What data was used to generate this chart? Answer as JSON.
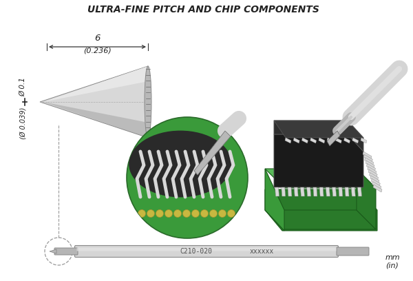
{
  "title": "ULTRA-FINE PITCH AND CHIP COMPONENTS",
  "title_fontsize": 10,
  "bg_color": "#ffffff",
  "dim_label_6": "6",
  "dim_label_236": "(0.236)",
  "dim_label_01": "Ø 0.1",
  "dim_label_039": "(Ø 0.039)",
  "part_label": "C210-020",
  "part_serial": "xxxxxx",
  "unit_label": "mm\n(in)",
  "tip_light": "#d8d8d8",
  "tip_mid": "#b8b8b8",
  "tip_dark": "#909090",
  "tip_highlight": "#ebebeb",
  "green_bright": "#5aba5a",
  "green_mid": "#3a9a3a",
  "green_dark": "#2a7a2a",
  "green_side": "#2d7a2d",
  "chip_top": "#2e2e2e",
  "chip_face": "#1a1a1a",
  "chip_side": "#111111",
  "solder_gold": "#c8b840",
  "solder_dark": "#a89030",
  "rod_light": "#d5d5d5",
  "rod_mid": "#b5b5b5",
  "rod_dark": "#959595",
  "text_color": "#222222",
  "arrow_color": "#333333",
  "dashed_color": "#999999"
}
